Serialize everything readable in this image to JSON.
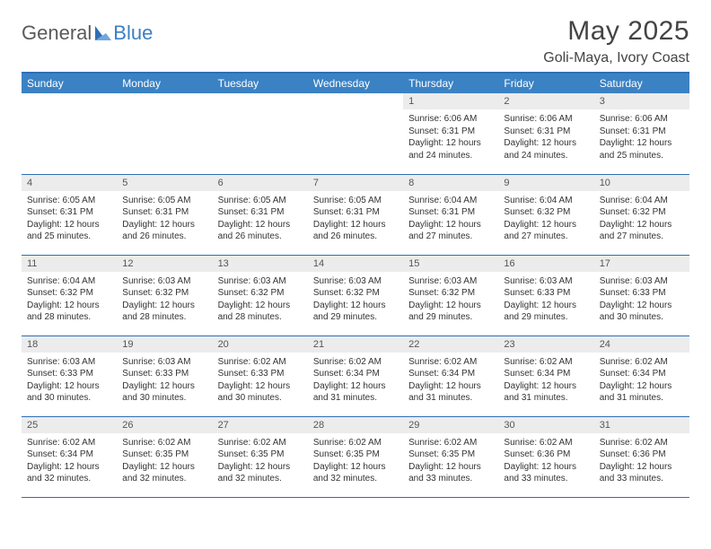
{
  "brand": {
    "word1": "General",
    "word2": "Blue"
  },
  "title": "May 2025",
  "location": "Goli-Maya, Ivory Coast",
  "columns": [
    "Sunday",
    "Monday",
    "Tuesday",
    "Wednesday",
    "Thursday",
    "Friday",
    "Saturday"
  ],
  "colors": {
    "header_bar": "#3b82c4",
    "header_border": "#2e6fb5",
    "daynum_bg": "#ececec",
    "logo_gray": "#5a5a5a",
    "logo_blue": "#3b7fc4"
  },
  "weeks": [
    [
      {
        "empty": true
      },
      {
        "empty": true
      },
      {
        "empty": true
      },
      {
        "empty": true
      },
      {
        "n": "1",
        "sr": "6:06 AM",
        "ss": "6:31 PM",
        "dl": "12 hours and 24 minutes."
      },
      {
        "n": "2",
        "sr": "6:06 AM",
        "ss": "6:31 PM",
        "dl": "12 hours and 24 minutes."
      },
      {
        "n": "3",
        "sr": "6:06 AM",
        "ss": "6:31 PM",
        "dl": "12 hours and 25 minutes."
      }
    ],
    [
      {
        "n": "4",
        "sr": "6:05 AM",
        "ss": "6:31 PM",
        "dl": "12 hours and 25 minutes."
      },
      {
        "n": "5",
        "sr": "6:05 AM",
        "ss": "6:31 PM",
        "dl": "12 hours and 26 minutes."
      },
      {
        "n": "6",
        "sr": "6:05 AM",
        "ss": "6:31 PM",
        "dl": "12 hours and 26 minutes."
      },
      {
        "n": "7",
        "sr": "6:05 AM",
        "ss": "6:31 PM",
        "dl": "12 hours and 26 minutes."
      },
      {
        "n": "8",
        "sr": "6:04 AM",
        "ss": "6:31 PM",
        "dl": "12 hours and 27 minutes."
      },
      {
        "n": "9",
        "sr": "6:04 AM",
        "ss": "6:32 PM",
        "dl": "12 hours and 27 minutes."
      },
      {
        "n": "10",
        "sr": "6:04 AM",
        "ss": "6:32 PM",
        "dl": "12 hours and 27 minutes."
      }
    ],
    [
      {
        "n": "11",
        "sr": "6:04 AM",
        "ss": "6:32 PM",
        "dl": "12 hours and 28 minutes."
      },
      {
        "n": "12",
        "sr": "6:03 AM",
        "ss": "6:32 PM",
        "dl": "12 hours and 28 minutes."
      },
      {
        "n": "13",
        "sr": "6:03 AM",
        "ss": "6:32 PM",
        "dl": "12 hours and 28 minutes."
      },
      {
        "n": "14",
        "sr": "6:03 AM",
        "ss": "6:32 PM",
        "dl": "12 hours and 29 minutes."
      },
      {
        "n": "15",
        "sr": "6:03 AM",
        "ss": "6:32 PM",
        "dl": "12 hours and 29 minutes."
      },
      {
        "n": "16",
        "sr": "6:03 AM",
        "ss": "6:33 PM",
        "dl": "12 hours and 29 minutes."
      },
      {
        "n": "17",
        "sr": "6:03 AM",
        "ss": "6:33 PM",
        "dl": "12 hours and 30 minutes."
      }
    ],
    [
      {
        "n": "18",
        "sr": "6:03 AM",
        "ss": "6:33 PM",
        "dl": "12 hours and 30 minutes."
      },
      {
        "n": "19",
        "sr": "6:03 AM",
        "ss": "6:33 PM",
        "dl": "12 hours and 30 minutes."
      },
      {
        "n": "20",
        "sr": "6:02 AM",
        "ss": "6:33 PM",
        "dl": "12 hours and 30 minutes."
      },
      {
        "n": "21",
        "sr": "6:02 AM",
        "ss": "6:34 PM",
        "dl": "12 hours and 31 minutes."
      },
      {
        "n": "22",
        "sr": "6:02 AM",
        "ss": "6:34 PM",
        "dl": "12 hours and 31 minutes."
      },
      {
        "n": "23",
        "sr": "6:02 AM",
        "ss": "6:34 PM",
        "dl": "12 hours and 31 minutes."
      },
      {
        "n": "24",
        "sr": "6:02 AM",
        "ss": "6:34 PM",
        "dl": "12 hours and 31 minutes."
      }
    ],
    [
      {
        "n": "25",
        "sr": "6:02 AM",
        "ss": "6:34 PM",
        "dl": "12 hours and 32 minutes."
      },
      {
        "n": "26",
        "sr": "6:02 AM",
        "ss": "6:35 PM",
        "dl": "12 hours and 32 minutes."
      },
      {
        "n": "27",
        "sr": "6:02 AM",
        "ss": "6:35 PM",
        "dl": "12 hours and 32 minutes."
      },
      {
        "n": "28",
        "sr": "6:02 AM",
        "ss": "6:35 PM",
        "dl": "12 hours and 32 minutes."
      },
      {
        "n": "29",
        "sr": "6:02 AM",
        "ss": "6:35 PM",
        "dl": "12 hours and 33 minutes."
      },
      {
        "n": "30",
        "sr": "6:02 AM",
        "ss": "6:36 PM",
        "dl": "12 hours and 33 minutes."
      },
      {
        "n": "31",
        "sr": "6:02 AM",
        "ss": "6:36 PM",
        "dl": "12 hours and 33 minutes."
      }
    ]
  ],
  "labels": {
    "sunrise": "Sunrise:",
    "sunset": "Sunset:",
    "daylight": "Daylight:"
  }
}
